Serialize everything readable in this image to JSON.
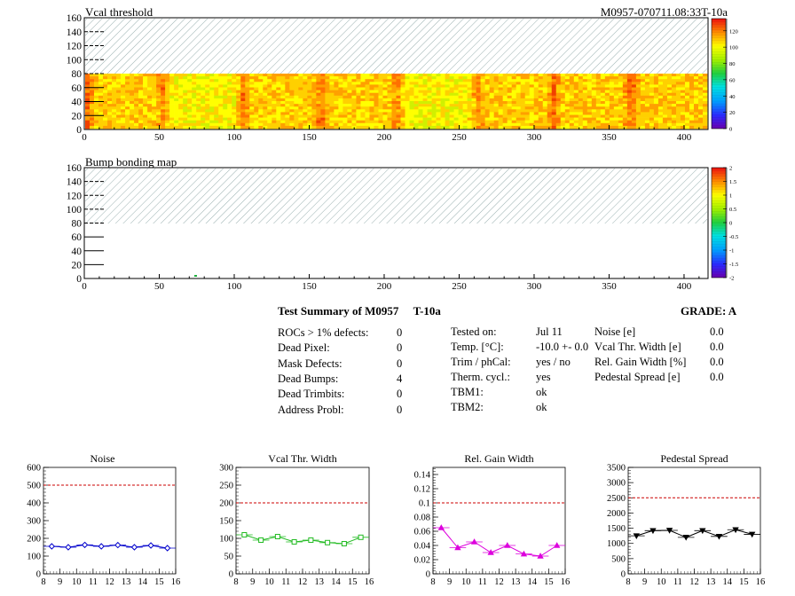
{
  "module_label": "M0957-070711.08:33T-10a",
  "maps": [
    {
      "title": "Vcal threshold",
      "x_ticks": [
        "0",
        "50",
        "100",
        "150",
        "200",
        "250",
        "300",
        "350",
        "400"
      ],
      "y_ticks": [
        "0",
        "20",
        "40",
        "60",
        "80",
        "100",
        "120",
        "140",
        "160"
      ],
      "xlim": [
        0,
        416
      ],
      "ylim": [
        0,
        160
      ],
      "palette_ticks": [
        "0",
        "20",
        "40",
        "60",
        "80",
        "100",
        "120"
      ],
      "palette_range": [
        0,
        135
      ]
    },
    {
      "title": "Bump bonding map",
      "x_ticks": [
        "0",
        "50",
        "100",
        "150",
        "200",
        "250",
        "300",
        "350",
        "400"
      ],
      "y_ticks": [
        "0",
        "20",
        "40",
        "60",
        "80",
        "100",
        "120",
        "140",
        "160"
      ],
      "xlim": [
        0,
        416
      ],
      "ylim": [
        0,
        160
      ],
      "palette_ticks": [
        "-2",
        "-1.5",
        "-1",
        "-0.5",
        "0",
        "0.5",
        "1",
        "1.5",
        "2"
      ],
      "palette_range": [
        -2,
        2
      ]
    }
  ],
  "summary": {
    "title": "Test Summary of M0957",
    "test": "T-10a",
    "grade": "GRADE:  A",
    "left": [
      {
        "label": "ROCs > 1% defects:",
        "value": "0"
      },
      {
        "label": "Dead Pixel:",
        "value": "0"
      },
      {
        "label": "Mask Defects:",
        "value": "0"
      },
      {
        "label": "Dead Bumps:",
        "value": "4"
      },
      {
        "label": "Dead Trimbits:",
        "value": "0"
      },
      {
        "label": "Address Probl:",
        "value": "0"
      }
    ],
    "middle": [
      {
        "label": "Tested on:",
        "value": "Jul 11"
      },
      {
        "label": "Temp. [°C]:",
        "value": "-10.0 +- 0.0"
      },
      {
        "label": "Trim / phCal:",
        "value": "yes / no"
      },
      {
        "label": "Therm. cycl.:",
        "value": "yes"
      },
      {
        "label": "TBM1:",
        "value": "ok"
      },
      {
        "label": "TBM2:",
        "value": "ok"
      }
    ],
    "right": [
      {
        "label": "Noise [e]",
        "value": "0.0"
      },
      {
        "label": "Vcal Thr. Width [e]",
        "value": "0.0"
      },
      {
        "label": "Rel. Gain Width [%]",
        "value": "0.0"
      },
      {
        "label": "Pedestal Spread [e]",
        "value": "0.0"
      }
    ]
  },
  "chart_data": [
    {
      "type": "heatmap",
      "title": "Vcal threshold",
      "xlim": [
        0,
        416
      ],
      "ylim": [
        0,
        160
      ],
      "filled_rows": [
        0,
        80
      ],
      "hatched_rows": [
        80,
        160
      ],
      "dominant_values": "60-110",
      "darker_columns_at": [
        0,
        52,
        104,
        156,
        208,
        260,
        312,
        364
      ]
    },
    {
      "type": "heatmap",
      "title": "Bump bonding map",
      "xlim": [
        0,
        416
      ],
      "ylim": [
        0,
        160
      ],
      "hatched_rows": [
        80,
        160
      ],
      "marked_pixels": [
        {
          "x": 74,
          "y": 1
        }
      ]
    },
    {
      "type": "line",
      "title": "Noise",
      "x": [
        8.5,
        9.5,
        10.5,
        11.5,
        12.5,
        13.5,
        14.5,
        15.5
      ],
      "values": [
        155,
        150,
        163,
        155,
        162,
        150,
        160,
        145
      ],
      "ylim": [
        0,
        600
      ],
      "xlim": [
        8,
        16
      ],
      "x_ticks": [
        "8",
        "9",
        "10",
        "11",
        "12",
        "13",
        "14",
        "15",
        "16"
      ],
      "y_ticks": [
        "0",
        "100",
        "200",
        "300",
        "400",
        "500",
        "600"
      ],
      "threshold": 500,
      "color": "#0000cc",
      "marker": "diamond"
    },
    {
      "type": "line",
      "title": "Vcal Thr. Width",
      "x": [
        8.5,
        9.5,
        10.5,
        11.5,
        12.5,
        13.5,
        14.5,
        15.5
      ],
      "values": [
        110,
        95,
        105,
        90,
        95,
        88,
        85,
        103
      ],
      "ylim": [
        0,
        300
      ],
      "xlim": [
        8,
        16
      ],
      "x_ticks": [
        "8",
        "9",
        "10",
        "11",
        "12",
        "13",
        "14",
        "15",
        "16"
      ],
      "y_ticks": [
        "0",
        "50",
        "100",
        "150",
        "200",
        "250",
        "300"
      ],
      "threshold": 200,
      "color": "#22bb22",
      "marker": "square"
    },
    {
      "type": "line",
      "title": "Rel. Gain Width",
      "x": [
        8.5,
        9.5,
        10.5,
        11.5,
        12.5,
        13.5,
        14.5,
        15.5
      ],
      "values": [
        0.065,
        0.037,
        0.045,
        0.03,
        0.04,
        0.028,
        0.025,
        0.04
      ],
      "ylim": [
        0,
        0.15
      ],
      "xlim": [
        8,
        16
      ],
      "x_ticks": [
        "8",
        "9",
        "10",
        "11",
        "12",
        "13",
        "14",
        "15",
        "16"
      ],
      "y_ticks": [
        "0",
        "0.02",
        "0.04",
        "0.06",
        "0.08",
        "0.1",
        "0.12",
        "0.14"
      ],
      "threshold": 0.1,
      "color": "#dd00dd",
      "marker": "triangle"
    },
    {
      "type": "line",
      "title": "Pedestal Spread",
      "x": [
        8.5,
        9.5,
        10.5,
        11.5,
        12.5,
        13.5,
        14.5,
        15.5
      ],
      "values": [
        1250,
        1420,
        1430,
        1200,
        1420,
        1230,
        1450,
        1300
      ],
      "ylim": [
        0,
        3500
      ],
      "xlim": [
        8,
        16
      ],
      "x_ticks": [
        "8",
        "9",
        "10",
        "11",
        "12",
        "13",
        "14",
        "15",
        "16"
      ],
      "y_ticks": [
        "0",
        "500",
        "1000",
        "1500",
        "2000",
        "2500",
        "3000",
        "3500"
      ],
      "threshold": 2500,
      "color": "#000000",
      "marker": "triangle-down"
    }
  ],
  "colors": {
    "threshold_line": "#cc0000",
    "hatch": "#9ab0b0"
  }
}
